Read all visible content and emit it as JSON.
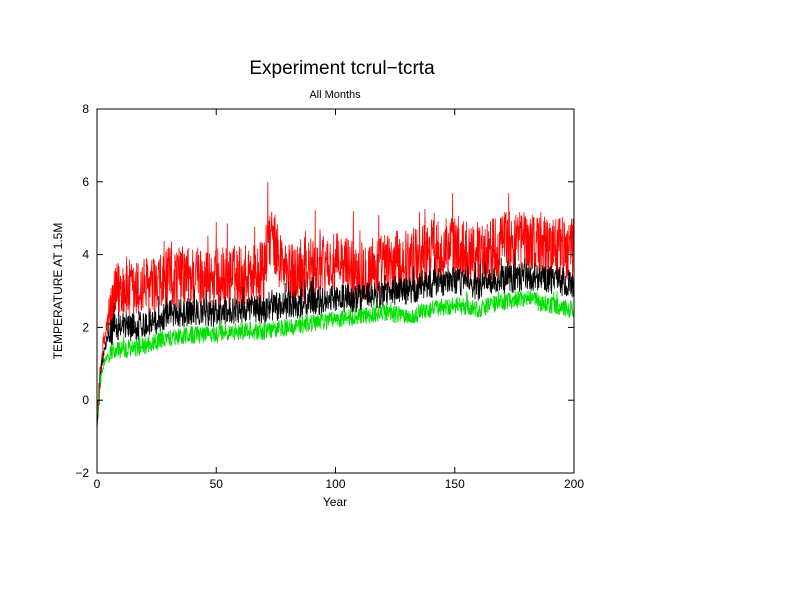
{
  "chart_data": {
    "type": "line",
    "title": "Experiment tcrul−tcrta",
    "subtitle": "All Months",
    "xlabel": "Year",
    "ylabel": "TEMPERATURE AT 1.5M",
    "xlim": [
      0,
      200
    ],
    "ylim": [
      -2,
      8
    ],
    "xticks": [
      0,
      50,
      100,
      150,
      200
    ],
    "yticks": [
      -2,
      0,
      2,
      4,
      6,
      8
    ],
    "xtick_labels": [
      "0",
      "50",
      "100",
      "150",
      "200"
    ],
    "ytick_labels": [
      "−2",
      "0",
      "2",
      "4",
      "6",
      "8"
    ],
    "grid": false,
    "legend": "none",
    "series": [
      {
        "color": "#ff0000",
        "x": [
          0,
          2,
          4,
          6,
          8,
          10,
          15,
          20,
          25,
          30,
          40,
          50,
          60,
          70,
          72,
          80,
          90,
          100,
          110,
          120,
          130,
          140,
          150,
          160,
          170,
          180,
          190,
          200
        ],
        "y": [
          -0.5,
          1.2,
          2.0,
          2.4,
          2.8,
          3.2,
          2.9,
          3.1,
          3.0,
          3.3,
          3.4,
          3.3,
          3.4,
          3.5,
          4.6,
          3.4,
          3.6,
          3.7,
          3.6,
          3.7,
          3.8,
          4.1,
          4.2,
          4.0,
          4.3,
          4.4,
          4.2,
          4.1
        ],
        "noise_amplitude": 0.9
      },
      {
        "color": "#000000",
        "x": [
          0,
          2,
          4,
          6,
          8,
          10,
          15,
          20,
          25,
          30,
          40,
          50,
          60,
          70,
          80,
          90,
          100,
          110,
          120,
          130,
          140,
          150,
          160,
          170,
          180,
          190,
          200
        ],
        "y": [
          -0.8,
          1.0,
          1.6,
          1.9,
          2.0,
          2.1,
          2.0,
          2.1,
          2.2,
          2.4,
          2.4,
          2.4,
          2.5,
          2.5,
          2.6,
          2.7,
          2.8,
          2.8,
          2.9,
          3.0,
          3.2,
          3.3,
          3.1,
          3.3,
          3.4,
          3.3,
          3.2
        ],
        "noise_amplitude": 0.4
      },
      {
        "color": "#00e000",
        "x": [
          0,
          2,
          4,
          6,
          8,
          10,
          15,
          20,
          25,
          30,
          40,
          50,
          60,
          70,
          80,
          90,
          100,
          110,
          120,
          130,
          140,
          150,
          160,
          170,
          180,
          190,
          200
        ],
        "y": [
          -0.5,
          0.8,
          1.2,
          1.3,
          1.4,
          1.4,
          1.4,
          1.5,
          1.6,
          1.7,
          1.8,
          1.8,
          1.9,
          1.9,
          2.0,
          2.1,
          2.2,
          2.3,
          2.4,
          2.3,
          2.5,
          2.6,
          2.5,
          2.7,
          2.8,
          2.6,
          2.5
        ],
        "noise_amplitude": 0.25
      }
    ]
  }
}
